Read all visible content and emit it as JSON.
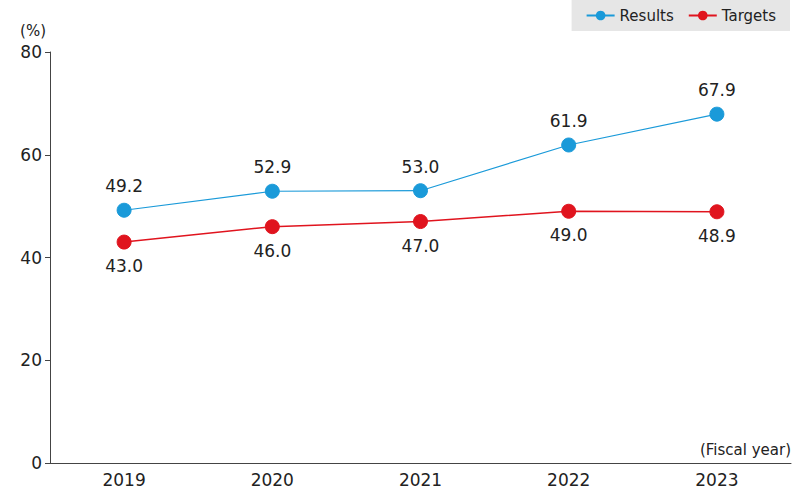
{
  "chart_data": {
    "type": "line",
    "categories": [
      "2019",
      "2020",
      "2021",
      "2022",
      "2023"
    ],
    "x_label": "(Fiscal year)",
    "y_label": "(%)",
    "series": [
      {
        "name": "Results",
        "color": "#1a9ad9",
        "marker": "circle",
        "values": [
          49.2,
          52.9,
          53.0,
          61.9,
          67.9
        ],
        "value_labels": [
          "49.2",
          "52.9",
          "53.0",
          "61.9",
          "67.9"
        ]
      },
      {
        "name": "Targets",
        "color": "#e0141e",
        "marker": "circle",
        "values": [
          43.0,
          46.0,
          47.0,
          49.0,
          48.9
        ],
        "value_labels": [
          "43.0",
          "46.0",
          "47.0",
          "49.0",
          "48.9"
        ]
      }
    ],
    "ylim": [
      0,
      80
    ],
    "yticks": [
      0,
      20,
      40,
      60,
      80
    ],
    "grid": false,
    "legend": "top-right",
    "data_labels": true
  }
}
